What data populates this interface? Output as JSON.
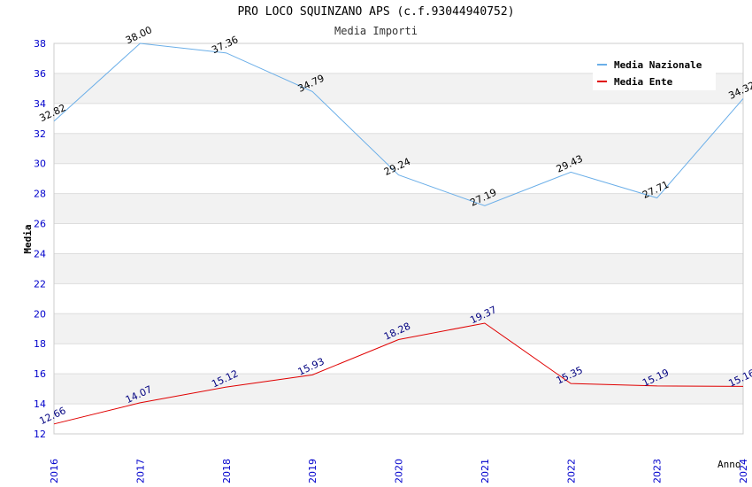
{
  "chart_data": {
    "type": "line",
    "title": "PRO LOCO SQUINZANO APS (c.f.93044940752)",
    "subtitle": "Media Importi",
    "xlabel": "Anno",
    "ylabel": "Media",
    "ylim": [
      12,
      38
    ],
    "yticks": [
      "12",
      "14",
      "16",
      "18",
      "20",
      "22",
      "24",
      "26",
      "28",
      "30",
      "32",
      "34",
      "36",
      "38"
    ],
    "categories": [
      "2016",
      "2017",
      "2018",
      "2019",
      "2020",
      "2021",
      "2022",
      "2023",
      "2024"
    ],
    "grid": true,
    "legend_position": "top-right",
    "series": [
      {
        "name": "Media Nazionale",
        "color": "#6aaee8",
        "label_color": "#000000",
        "values": [
          32.82,
          38.0,
          37.36,
          34.79,
          29.24,
          27.19,
          29.43,
          27.71,
          34.32
        ],
        "labels": [
          "32.82",
          "38.00",
          "37.36",
          "34.79",
          "29.24",
          "27.19",
          "29.43",
          "27.71",
          "34.32"
        ]
      },
      {
        "name": "Media Ente",
        "color": "#e00000",
        "label_color": "#000080",
        "values": [
          12.66,
          14.07,
          15.12,
          15.93,
          18.28,
          19.37,
          15.35,
          15.19,
          15.16
        ],
        "labels": [
          "12.66",
          "14.07",
          "15.12",
          "15.93",
          "18.28",
          "19.37",
          "15.35",
          "15.19",
          "15.16"
        ]
      }
    ],
    "colors": {
      "axis_tick_text": "#0000cc",
      "band": "#f2f2f2",
      "grid": "#dddddd"
    }
  }
}
